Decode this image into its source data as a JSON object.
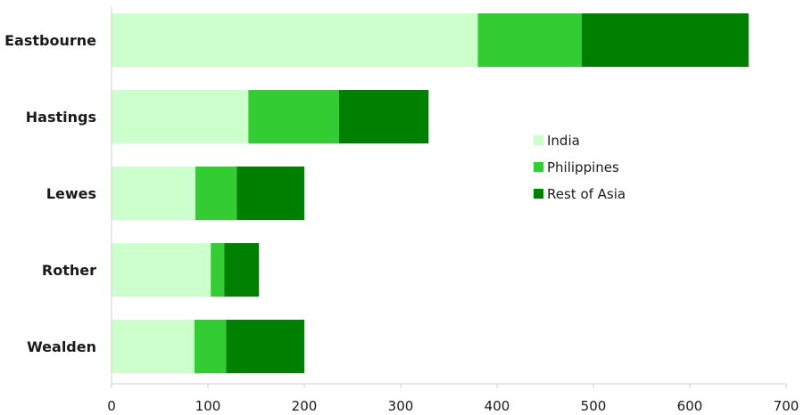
{
  "chart_data": {
    "type": "bar",
    "orientation": "horizontal",
    "stacked": true,
    "title": "",
    "xlabel": "",
    "ylabel": "",
    "categories": [
      "Eastbourne",
      "Hastings",
      "Lewes",
      "Rother",
      "Wealden"
    ],
    "series": [
      {
        "name": "India",
        "color": "#ccffcc",
        "values": [
          380,
          142,
          87,
          103,
          86
        ]
      },
      {
        "name": "Philippines",
        "color": "#33cc33",
        "values": [
          108,
          94,
          43,
          14,
          33
        ]
      },
      {
        "name": "Rest of Asia",
        "color": "#008000",
        "values": [
          173,
          93,
          70,
          36,
          81
        ]
      }
    ],
    "xlim": [
      0,
      700
    ],
    "xticks": [
      "0",
      "100",
      "200",
      "300",
      "400",
      "500",
      "600",
      "700"
    ],
    "grid": false,
    "legend_position": "right"
  }
}
